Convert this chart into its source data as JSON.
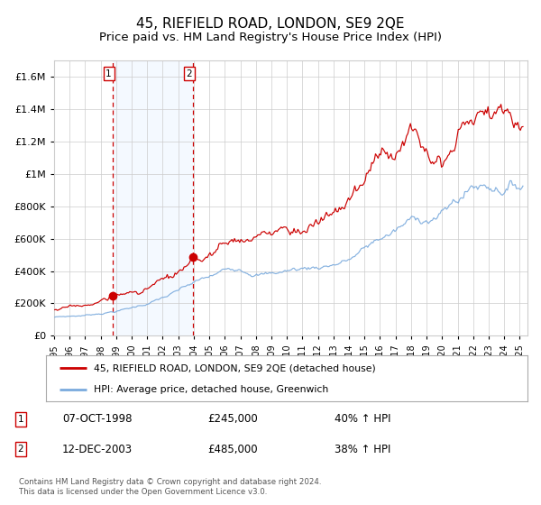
{
  "title": "45, RIEFIELD ROAD, LONDON, SE9 2QE",
  "subtitle": "Price paid vs. HM Land Registry's House Price Index (HPI)",
  "sale1_date": "07-OCT-1998",
  "sale1_price": 245000,
  "sale1_label": "40% ↑ HPI",
  "sale2_date": "12-DEC-2003",
  "sale2_price": 485000,
  "sale2_label": "38% ↑ HPI",
  "sale1_year": 1998.77,
  "sale2_year": 2003.95,
  "legend_line1": "45, RIEFIELD ROAD, LONDON, SE9 2QE (detached house)",
  "legend_line2": "HPI: Average price, detached house, Greenwich",
  "footer": "Contains HM Land Registry data © Crown copyright and database right 2024.\nThis data is licensed under the Open Government Licence v3.0.",
  "line_color_red": "#cc0000",
  "line_color_blue": "#7aaadd",
  "shading_color": "#ddeeff",
  "vline_color": "#cc0000",
  "grid_color": "#cccccc",
  "background_color": "#ffffff",
  "ylim": [
    0,
    1700000
  ],
  "xlim_start": 1995.0,
  "xlim_end": 2025.5,
  "title_fontsize": 11,
  "subtitle_fontsize": 9.5
}
